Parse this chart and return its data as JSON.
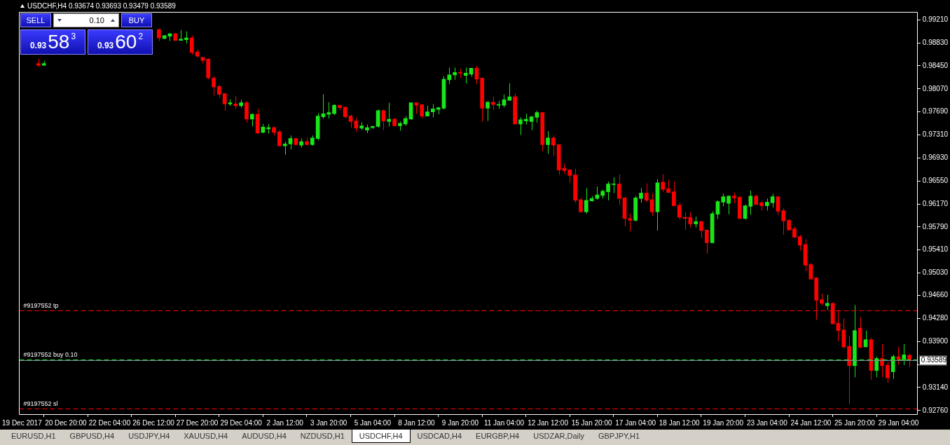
{
  "chart_data": {
    "type": "candlestick",
    "title": "USDCHF,H4 0.93674 0.93693 0.93479 0.93589",
    "categories": [
      "19 Dec 2017",
      null,
      null,
      null,
      null,
      null,
      null,
      null,
      "20 Dec 20:00",
      null,
      null,
      null,
      null,
      null,
      null,
      null,
      "22 Dec 04:00",
      null,
      null,
      null,
      null,
      null,
      null,
      null,
      "26 Dec 12:00",
      null,
      null,
      null,
      null,
      null,
      null,
      null,
      "27 Dec 20:00",
      null,
      null,
      null,
      null,
      null,
      null,
      null,
      "29 Dec 04:00",
      null,
      null,
      null,
      null,
      null,
      null,
      null,
      "2 Jan 12:00",
      null,
      null,
      null,
      null,
      null,
      null,
      null,
      "3 Jan 20:00",
      null,
      null,
      null,
      null,
      null,
      null,
      null,
      "5 Jan 04:00",
      null,
      null,
      null,
      null,
      null,
      null,
      null,
      "8 Jan 12:00",
      null,
      null,
      null,
      null,
      null,
      null,
      null,
      "9 Jan 20:00",
      null,
      null,
      null,
      null,
      null,
      null,
      null,
      "11 Jan 04:00",
      null,
      null,
      null,
      null,
      null,
      null,
      null,
      "12 Jan 12:00",
      null,
      null,
      null,
      null,
      null,
      null,
      null,
      "15 Jan 20:00",
      null,
      null,
      null,
      null,
      null,
      null,
      null,
      "17 Jan 04:00",
      null,
      null,
      null,
      null,
      null,
      null,
      null,
      "18 Jan 12:00",
      null,
      null,
      null,
      null,
      null,
      null,
      null,
      "19 Jan 20:00",
      null,
      null,
      null,
      null,
      null,
      null,
      null,
      "23 Jan 04:00",
      null,
      null,
      null,
      null,
      null,
      null,
      null,
      "24 Jan 12:00",
      null,
      null,
      null,
      null,
      null,
      null,
      null,
      "25 Jan 20:00",
      null,
      null,
      null,
      null,
      null,
      null,
      null,
      "29 Jan 04:00",
      null,
      null
    ],
    "ohlc": [
      null,
      null,
      null,
      [
        0.9849,
        0.9857,
        0.9843,
        0.9846
      ],
      [
        0.9846,
        0.9853,
        0.9845,
        0.9849
      ],
      null,
      null,
      null,
      null,
      null,
      null,
      null,
      null,
      null,
      null,
      null,
      null,
      null,
      null,
      null,
      null,
      null,
      null,
      null,
      null,
      [
        0.9905,
        0.9906,
        0.9886,
        0.9891
      ],
      [
        0.989,
        0.9896,
        0.9889,
        0.9895
      ],
      [
        0.9894,
        0.9899,
        0.9886,
        0.9898
      ],
      [
        0.9898,
        0.9899,
        0.9886,
        0.9887
      ],
      [
        0.9887,
        0.9904,
        0.9887,
        0.9889
      ],
      [
        0.9888,
        0.9902,
        0.9882,
        0.9891
      ],
      [
        0.9891,
        0.9895,
        0.9863,
        0.9867
      ],
      [
        0.9868,
        0.9872,
        0.9859,
        0.9861
      ],
      [
        0.9859,
        0.986,
        0.9849,
        0.9854
      ],
      [
        0.9856,
        0.9857,
        0.9823,
        0.9825
      ],
      [
        0.9825,
        0.9828,
        0.9796,
        0.981
      ],
      [
        0.9811,
        0.9814,
        0.9792,
        0.9798
      ],
      [
        0.9799,
        0.9799,
        0.9771,
        0.9782
      ],
      [
        0.9782,
        0.979,
        0.9779,
        0.9784
      ],
      [
        0.9782,
        0.9795,
        0.9774,
        0.9779
      ],
      [
        0.9779,
        0.9789,
        0.9776,
        0.9784
      ],
      [
        0.9784,
        0.9787,
        0.9751,
        0.9757
      ],
      [
        0.9757,
        0.9766,
        0.9745,
        0.9765
      ],
      [
        0.9765,
        0.9774,
        0.9733,
        0.9734
      ],
      [
        0.9735,
        0.9749,
        0.9734,
        0.9744
      ],
      [
        0.9741,
        0.9749,
        0.9733,
        0.9743
      ],
      [
        0.9743,
        0.9745,
        0.973,
        0.9735
      ],
      [
        0.9736,
        0.9739,
        0.9713,
        0.9713
      ],
      [
        0.9713,
        0.972,
        0.9698,
        0.9716
      ],
      [
        0.9716,
        0.973,
        0.9707,
        0.9725
      ],
      [
        0.9725,
        0.9726,
        0.9714,
        0.9715
      ],
      [
        0.9714,
        0.9725,
        0.971,
        0.972
      ],
      [
        0.972,
        0.9726,
        0.9714,
        0.9715
      ],
      [
        0.9715,
        0.973,
        0.9713,
        0.9726
      ],
      [
        0.9725,
        0.9767,
        0.9722,
        0.9762
      ],
      [
        0.9761,
        0.9798,
        0.9758,
        0.9766
      ],
      [
        0.9765,
        0.9785,
        0.9758,
        0.9768
      ],
      [
        0.9766,
        0.9781,
        0.9764,
        0.978
      ],
      [
        0.978,
        0.978,
        0.9772,
        0.9776
      ],
      [
        0.9777,
        0.9777,
        0.9758,
        0.9761
      ],
      [
        0.9762,
        0.9764,
        0.9743,
        0.9753
      ],
      [
        0.9754,
        0.9759,
        0.9736,
        0.9742
      ],
      [
        0.9742,
        0.9752,
        0.9739,
        0.9746
      ],
      [
        0.9739,
        0.9748,
        0.9734,
        0.9743
      ],
      [
        0.9743,
        0.9746,
        0.9741,
        0.9745
      ],
      [
        0.9745,
        0.9773,
        0.9743,
        0.9771
      ],
      [
        0.9771,
        0.9773,
        0.9739,
        0.9754
      ],
      [
        0.9753,
        0.9784,
        0.9745,
        0.9757
      ],
      [
        0.9757,
        0.9759,
        0.9746,
        0.9746
      ],
      [
        0.9746,
        0.9753,
        0.9738,
        0.975
      ],
      [
        0.9749,
        0.9762,
        0.9746,
        0.9758
      ],
      [
        0.9757,
        0.9784,
        0.9756,
        0.9784
      ],
      [
        0.9784,
        0.9784,
        0.9766,
        0.978
      ],
      [
        0.9781,
        0.9781,
        0.9758,
        0.9762
      ],
      [
        0.9762,
        0.9779,
        0.9762,
        0.9769
      ],
      [
        0.9769,
        0.9782,
        0.976,
        0.9774
      ],
      [
        0.9773,
        0.9776,
        0.9765,
        0.9776
      ],
      [
        0.9775,
        0.9828,
        0.9773,
        0.9823
      ],
      [
        0.9822,
        0.9842,
        0.9815,
        0.983
      ],
      [
        0.983,
        0.9842,
        0.9822,
        0.9834
      ],
      [
        0.9834,
        0.984,
        0.9825,
        0.9833
      ],
      [
        0.9829,
        0.9842,
        0.9816,
        0.9833
      ],
      [
        0.9831,
        0.9841,
        0.9827,
        0.9841
      ],
      [
        0.9841,
        0.9845,
        0.9815,
        0.9823
      ],
      [
        0.9825,
        0.9825,
        0.9753,
        0.9775
      ],
      [
        0.9775,
        0.9787,
        0.9754,
        0.9785
      ],
      [
        0.9785,
        0.9794,
        0.9772,
        0.9781
      ],
      [
        0.978,
        0.9787,
        0.9774,
        0.9781
      ],
      [
        0.978,
        0.9798,
        0.9776,
        0.9789
      ],
      [
        0.9788,
        0.9816,
        0.9787,
        0.9794
      ],
      [
        0.9794,
        0.9799,
        0.9749,
        0.9749
      ],
      [
        0.9749,
        0.976,
        0.9731,
        0.9756
      ],
      [
        0.9754,
        0.9766,
        0.9748,
        0.9757
      ],
      [
        0.9753,
        0.9762,
        0.9739,
        0.9761
      ],
      [
        0.976,
        0.9771,
        0.9751,
        0.9768
      ],
      [
        0.9768,
        0.9769,
        0.9704,
        0.9715
      ],
      [
        0.9715,
        0.9737,
        0.97,
        0.9726
      ],
      [
        0.9726,
        0.973,
        0.9696,
        0.9714
      ],
      [
        0.9715,
        0.9715,
        0.9665,
        0.9673
      ],
      [
        0.9676,
        0.9684,
        0.9667,
        0.9672
      ],
      [
        0.9673,
        0.9674,
        0.9652,
        0.9664
      ],
      [
        0.9665,
        0.9675,
        0.9619,
        0.9623
      ],
      [
        0.9624,
        0.9627,
        0.9603,
        0.9604
      ],
      [
        0.9604,
        0.9643,
        0.9601,
        0.9623
      ],
      [
        0.9622,
        0.963,
        0.9621,
        0.9626
      ],
      [
        0.9626,
        0.9646,
        0.9624,
        0.9632
      ],
      [
        0.9631,
        0.9641,
        0.9626,
        0.9638
      ],
      [
        0.9637,
        0.9654,
        0.9623,
        0.965
      ],
      [
        0.9649,
        0.9661,
        0.9635,
        0.965
      ],
      [
        0.965,
        0.9666,
        0.9615,
        0.9626
      ],
      [
        0.9627,
        0.9629,
        0.958,
        0.9593
      ],
      [
        0.9593,
        0.9601,
        0.9572,
        0.959
      ],
      [
        0.959,
        0.963,
        0.9588,
        0.9627
      ],
      [
        0.9626,
        0.9643,
        0.9619,
        0.9635
      ],
      [
        0.9635,
        0.9651,
        0.962,
        0.9623
      ],
      [
        0.9624,
        0.9635,
        0.9598,
        0.9604
      ],
      [
        0.9604,
        0.9658,
        0.9573,
        0.9652
      ],
      [
        0.9653,
        0.9666,
        0.9637,
        0.9641
      ],
      [
        0.9642,
        0.9657,
        0.9635,
        0.9636
      ],
      [
        0.9637,
        0.9654,
        0.9614,
        0.9614
      ],
      [
        0.9615,
        0.9619,
        0.9591,
        0.9595
      ],
      [
        0.9595,
        0.9603,
        0.9574,
        0.9593
      ],
      [
        0.9595,
        0.9604,
        0.9578,
        0.9584
      ],
      [
        0.9584,
        0.9596,
        0.9578,
        0.9588
      ],
      [
        0.9588,
        0.9589,
        0.9561,
        0.9573
      ],
      [
        0.9574,
        0.9575,
        0.9535,
        0.9553
      ],
      [
        0.9553,
        0.9605,
        0.9552,
        0.9601
      ],
      [
        0.96,
        0.9623,
        0.9592,
        0.9621
      ],
      [
        0.962,
        0.9634,
        0.9613,
        0.9629
      ],
      [
        0.9618,
        0.9631,
        0.96,
        0.963
      ],
      [
        0.963,
        0.9636,
        0.9618,
        0.9627
      ],
      [
        0.9628,
        0.963,
        0.9592,
        0.9593
      ],
      [
        0.9593,
        0.9616,
        0.9591,
        0.9614
      ],
      [
        0.9613,
        0.9639,
        0.9599,
        0.963
      ],
      [
        0.963,
        0.9632,
        0.9616,
        0.9616
      ],
      [
        0.9619,
        0.9622,
        0.9606,
        0.9614
      ],
      [
        0.9614,
        0.9626,
        0.9606,
        0.962
      ],
      [
        0.9619,
        0.9634,
        0.9611,
        0.9629
      ],
      [
        0.9629,
        0.9629,
        0.9599,
        0.9605
      ],
      [
        0.9606,
        0.961,
        0.9566,
        0.9589
      ],
      [
        0.959,
        0.9592,
        0.9573,
        0.9574
      ],
      [
        0.9576,
        0.958,
        0.9561,
        0.9562
      ],
      [
        0.9563,
        0.9566,
        0.954,
        0.9549
      ],
      [
        0.955,
        0.9559,
        0.9506,
        0.9516
      ],
      [
        0.9517,
        0.952,
        0.9493,
        0.9493
      ],
      [
        0.9495,
        0.9496,
        0.9426,
        0.9458
      ],
      [
        0.9459,
        0.9469,
        0.9449,
        0.9453
      ],
      [
        0.9449,
        0.9467,
        0.9442,
        0.9453
      ],
      [
        0.9453,
        0.9455,
        0.9419,
        0.9419
      ],
      [
        0.942,
        0.9442,
        0.939,
        0.9408
      ],
      [
        0.9409,
        0.9428,
        0.9378,
        0.9381
      ],
      [
        0.9382,
        0.9399,
        0.9287,
        0.935
      ],
      [
        0.935,
        0.945,
        0.9331,
        0.9408
      ],
      [
        0.9412,
        0.943,
        0.938,
        0.938
      ],
      [
        0.9381,
        0.9408,
        0.9381,
        0.9393
      ],
      [
        0.9393,
        0.9396,
        0.9327,
        0.9342
      ],
      [
        0.9342,
        0.9365,
        0.9331,
        0.9362
      ],
      [
        0.9362,
        0.9386,
        0.9331,
        0.935
      ],
      [
        0.9351,
        0.9357,
        0.9322,
        0.933
      ],
      [
        0.934,
        0.9368,
        0.9328,
        0.9365
      ],
      [
        0.9365,
        0.9381,
        0.9352,
        0.936
      ],
      [
        0.936,
        0.9386,
        0.9351,
        0.9368
      ],
      [
        0.93674,
        0.93693,
        0.93479,
        0.93589
      ]
    ],
    "colors": [
      null,
      null,
      null,
      "#ff0000",
      "#19e619",
      null,
      null,
      null,
      null,
      null,
      null,
      null,
      null,
      null,
      null,
      null,
      null,
      null,
      null,
      null,
      null,
      null,
      null,
      null,
      null,
      "#ff0000",
      "#19e619",
      "#19e619",
      "#ff0000",
      "#19e619",
      "#19e619",
      "#ff0000",
      "#ff0000",
      "#ff0000",
      "#ff0000",
      "#ff0000",
      "#ff0000",
      "#ff0000",
      "#19e619",
      "#ff0000",
      "#19e619",
      "#ff0000",
      "#19e619",
      "#ff0000",
      "#19e619",
      "#19e619",
      "#ff0000",
      "#ff0000",
      "#19e619",
      "#19e619",
      "#ff0000",
      "#19e619",
      "#ff0000",
      "#19e619",
      "#19e619",
      "#19e619",
      "#19e619",
      "#19e619",
      "#ff0000",
      "#ff0000",
      "#ff0000",
      "#ff0000",
      "#19e619",
      "#19e619",
      "#19e619",
      "#19e619",
      "#ff0000",
      "#19e619",
      "#ff0000",
      "#19e619",
      "#19e619",
      "#19e619",
      "#ff0000",
      "#ff0000",
      "#19e619",
      "#19e619",
      "#19e619",
      "#19e619",
      "#19e619",
      "#19e619",
      "#ff0000",
      "#19e619",
      "#19e619",
      "#ff0000",
      "#ff0000",
      "#19e619",
      "#ff0000",
      "#19e619",
      "#19e619",
      "#19e619",
      "#ff0000",
      "#19e619",
      "#19e619",
      "#19e619",
      "#19e619",
      "#ff0000",
      "#19e619",
      "#ff0000",
      "#ff0000",
      "#ff0000",
      "#ff0000",
      "#ff0000",
      "#ff0000",
      "#19e619",
      "#19e619",
      "#19e619",
      "#19e619",
      "#19e619",
      "#19e619",
      "#ff0000",
      "#ff0000",
      "#ff0000",
      "#19e619",
      "#19e619",
      "#ff0000",
      "#ff0000",
      "#19e619",
      "#ff0000",
      "#ff0000",
      "#ff0000",
      "#ff0000",
      "#ff0000",
      "#ff0000",
      "#19e619",
      "#ff0000",
      "#ff0000",
      "#19e619",
      "#19e619",
      "#19e619",
      "#19e619",
      "#ff0000",
      "#ff0000",
      "#19e619",
      "#19e619",
      "#ff0000",
      "#ff0000",
      "#19e619",
      "#19e619",
      "#ff0000",
      "#ff0000",
      "#ff0000",
      "#ff0000",
      "#ff0000",
      "#ff0000",
      "#ff0000",
      "#ff0000",
      "#ff0000",
      "#19e619",
      "#ff0000",
      "#ff0000",
      "#ff0000",
      "#ff0000",
      "#19e619",
      "#ff0000",
      "#19e619",
      "#ff0000",
      "#19e619",
      "#ff0000",
      "#ff0000",
      "#19e619",
      "#ff0000",
      "#19e619",
      "#ff0000"
    ],
    "ylim": [
      0.927,
      0.9934
    ],
    "yticks": [
      {
        "value": 0.9921,
        "label": "0.99210"
      },
      {
        "value": 0.9883,
        "label": "0.98830"
      },
      {
        "value": 0.9845,
        "label": "0.98450"
      },
      {
        "value": 0.9807,
        "label": "0.98070"
      },
      {
        "value": 0.9769,
        "label": "0.97690"
      },
      {
        "value": 0.9731,
        "label": "0.97310"
      },
      {
        "value": 0.9693,
        "label": "0.96930"
      },
      {
        "value": 0.9655,
        "label": "0.96550"
      },
      {
        "value": 0.9617,
        "label": "0.96170"
      },
      {
        "value": 0.9579,
        "label": "0.95790"
      },
      {
        "value": 0.9541,
        "label": "0.95410"
      },
      {
        "value": 0.9503,
        "label": "0.95030"
      },
      {
        "value": 0.9466,
        "label": "0.94660"
      },
      {
        "value": 0.9428,
        "label": "0.94280"
      },
      {
        "value": 0.939,
        "label": "0.93900"
      },
      {
        "value": 0.9352,
        "label": null
      },
      {
        "value": 0.9314,
        "label": "0.93140"
      },
      {
        "value": 0.9276,
        "label": "0.92760"
      }
    ],
    "ref_lines": [
      {
        "axis": "y",
        "value": 0.94415,
        "label": "#9197552 tp",
        "color": "#ff0000",
        "line_style": "dashed"
      },
      {
        "axis": "y",
        "value": 0.93604,
        "label": "#9197552 buy 0.10",
        "color": "#19e619",
        "line_style": "dashed"
      },
      {
        "axis": "y",
        "value": 0.92795,
        "label": "#9197552 sl",
        "color": "#ff0000",
        "line_style": "dashed"
      },
      {
        "axis": "y",
        "value": 0.93589,
        "label": "0.93589",
        "color": "#778899",
        "line_style": "solid"
      }
    ],
    "annotations": [
      "SELL",
      "0.10",
      "BUY",
      "0.93",
      "58",
      "3",
      "0.93",
      "60",
      "2",
      "EURUSD,H1",
      "GBPUSD,H4",
      "USDJPY,H4",
      "XAUUSD,H4",
      "AUDUSD,H4",
      "NZDUSD,H1",
      "USDCHF,H4",
      "USDCAD,H4",
      "EURGBP,H4",
      "USDZAR,Daily",
      "GBPJPY,H1"
    ]
  }
}
